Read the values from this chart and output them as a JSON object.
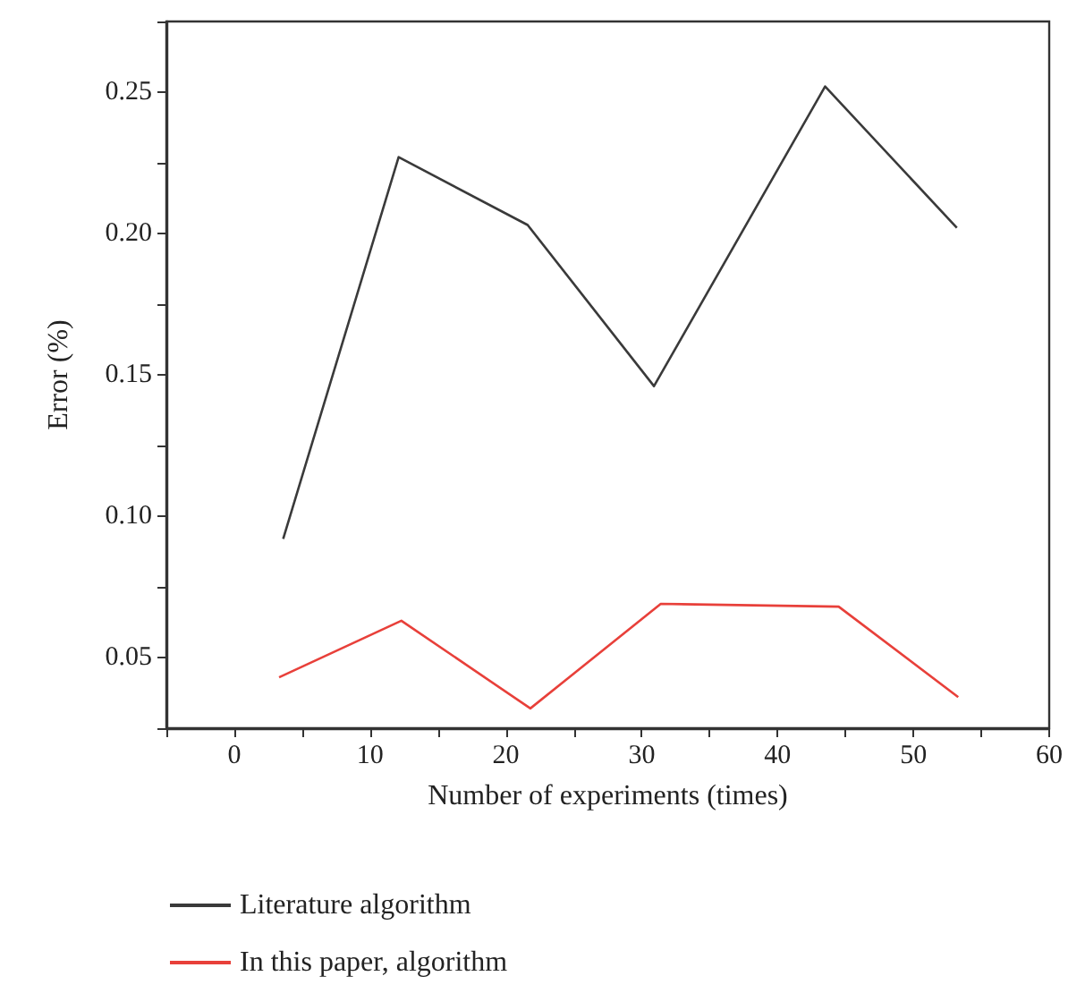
{
  "chart_data": {
    "type": "line",
    "xlabel": "Number of experiments (times)",
    "ylabel": "Error (%)",
    "xlim": [
      -5,
      60
    ],
    "xticks": [
      {
        "value": -5,
        "label": null
      },
      0,
      {
        "value": 5,
        "label": null
      },
      10,
      {
        "value": 15,
        "label": null
      },
      20,
      {
        "value": 25,
        "label": null
      },
      30,
      {
        "value": 35,
        "label": null
      },
      40,
      {
        "value": 45,
        "label": null
      },
      50,
      {
        "value": 55,
        "label": null
      },
      60
    ],
    "ylim": [
      0.025,
      0.275
    ],
    "yticks": [
      {
        "value": 0.025,
        "label": null
      },
      0.05,
      {
        "value": 0.075,
        "label": null
      },
      {
        "value": 0.1,
        "label": "0.10"
      },
      {
        "value": 0.125,
        "label": null
      },
      0.15,
      {
        "value": 0.175,
        "label": null
      },
      {
        "value": 0.2,
        "label": "0.20"
      },
      {
        "value": 0.225,
        "label": null
      },
      0.25,
      {
        "value": 0.275,
        "label": null
      }
    ],
    "series": [
      {
        "name": "Literature algorithm",
        "color": "#3a3a3a",
        "x": [
          3.6,
          12.1,
          21.6,
          30.9,
          43.5,
          53.2
        ],
        "values": [
          0.092,
          0.227,
          0.203,
          0.146,
          0.252,
          0.202
        ]
      },
      {
        "name": "In this paper, algorithm",
        "color": "#e8403a",
        "x": [
          3.3,
          12.3,
          21.8,
          31.4,
          44.5,
          53.3
        ],
        "values": [
          0.043,
          0.063,
          0.032,
          0.069,
          0.068,
          0.036
        ]
      }
    ],
    "grid": false,
    "legend": "bottom",
    "marker": "none",
    "line_style": "solid"
  }
}
